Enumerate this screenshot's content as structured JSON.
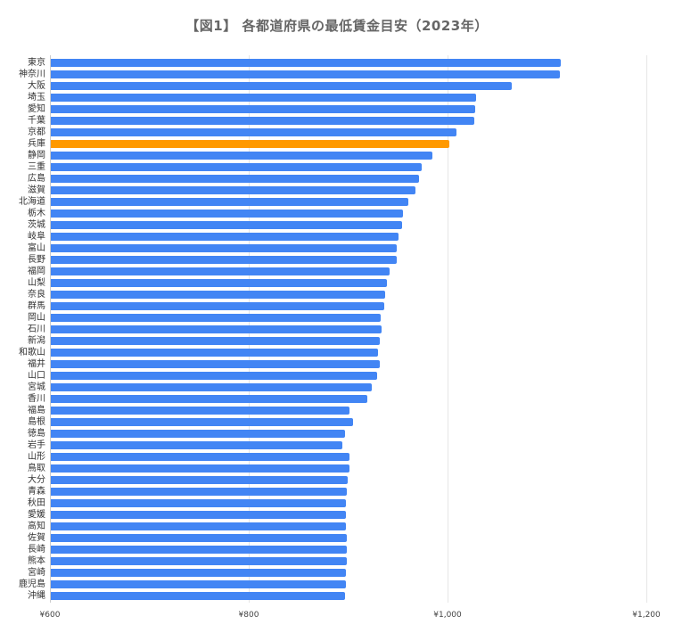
{
  "chart_data": {
    "type": "bar",
    "orientation": "horizontal",
    "title": "【図1】 各都道府県の最低賃金目安（2023年）",
    "xlabel": "",
    "ylabel": "",
    "xlim": [
      600,
      1200
    ],
    "x_ticks": [
      "¥600",
      "¥800",
      "¥1,000",
      "¥1,200"
    ],
    "grid": true,
    "legend": null,
    "colors": {
      "default": "#4285f4",
      "highlight": "#ff9900"
    },
    "highlight_category": "兵庫",
    "categories": [
      "東京",
      "神奈川",
      "大阪",
      "埼玉",
      "愛知",
      "千葉",
      "京都",
      "兵庫",
      "静岡",
      "三重",
      "広島",
      "滋賀",
      "北海道",
      "栃木",
      "茨城",
      "岐阜",
      "富山",
      "長野",
      "福岡",
      "山梨",
      "奈良",
      "群馬",
      "岡山",
      "石川",
      "新潟",
      "和歌山",
      "福井",
      "山口",
      "宮城",
      "香川",
      "福島",
      "島根",
      "徳島",
      "岩手",
      "山形",
      "鳥取",
      "大分",
      "青森",
      "秋田",
      "愛媛",
      "高知",
      "佐賀",
      "長崎",
      "熊本",
      "宮崎",
      "鹿児島",
      "沖縄"
    ],
    "values": [
      1113,
      1112,
      1064,
      1028,
      1027,
      1026,
      1008,
      1001,
      984,
      973,
      970,
      967,
      960,
      954,
      953,
      950,
      948,
      948,
      941,
      938,
      936,
      935,
      932,
      933,
      931,
      929,
      931,
      928,
      923,
      918,
      900,
      904,
      896,
      893,
      900,
      900,
      899,
      898,
      897,
      897,
      897,
      898,
      898,
      898,
      897,
      897,
      896
    ]
  }
}
